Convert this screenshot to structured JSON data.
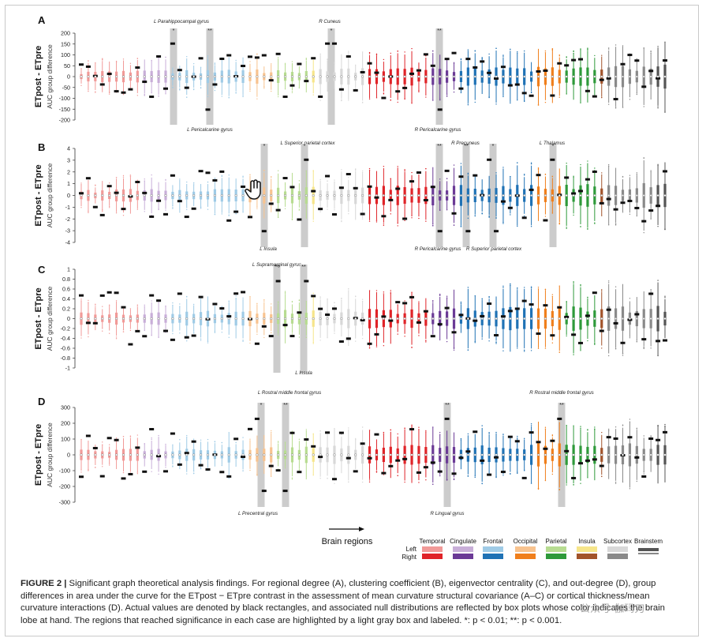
{
  "figure": {
    "caption_lead": "FIGURE 2 |",
    "caption_text": "Significant graph theoretical analysis findings. For regional degree (A), clustering coefficient (B), eigenvector centrality (C), and out-degree (D), group differences in area under the curve for the ETpost − ETpre contrast in the assessment of mean curvature structural covariance (A–C) or cortical thickness/mean curvature interactions (D). Actual values are denoted by black rectangles, and associated null distributions are reflected by box plots whose color indicates the brain lobe at hand. The regions that reached significance in each case are highlighted by a light gray box and labeled. *: p < 0.01; **: p < 0.001.",
    "watermark": "公众号·伽玛刀",
    "arrow_label": "Brain regions"
  },
  "legend": {
    "row_left": "Left",
    "row_right": "Right",
    "lobes": [
      {
        "name": "Temporal",
        "left": "#f19a98",
        "right": "#e02328"
      },
      {
        "name": "Cingulate",
        "left": "#c8aed8",
        "right": "#6b3a96"
      },
      {
        "name": "Frontal",
        "left": "#9fcbe6",
        "right": "#1f72b5"
      },
      {
        "name": "Occipital",
        "left": "#f8c38f",
        "right": "#f07f1c"
      },
      {
        "name": "Parietal",
        "left": "#b7dc91",
        "right": "#2e9a3a"
      },
      {
        "name": "Insula",
        "left": "#f6e58a",
        "right": "#a2532a"
      },
      {
        "name": "Subcortex",
        "left": "#d8d8d8",
        "right": "#8a8a8a"
      },
      {
        "name": "Brainstem",
        "left": "#555555",
        "right": "#555555"
      }
    ]
  },
  "chart_data": [
    {
      "panel": "A",
      "type": "box",
      "ylabel": "ETpost - ETpre",
      "ylabel2": "AUC group difference",
      "ylim": [
        -200,
        200
      ],
      "ticks": [
        200,
        150,
        100,
        50,
        0,
        -50,
        -100,
        -150,
        -200
      ],
      "significant": [
        {
          "label": "L Parahippocampal gyrus",
          "stars": "*",
          "label_pos": "top"
        },
        {
          "label": "L Pericalcarine gyrus",
          "stars": "**",
          "label_pos": "bottom"
        },
        {
          "label": "R Cuneus",
          "stars": "*",
          "label_pos": "top"
        },
        {
          "label": "R Pericalcarine gyrus",
          "stars": "**",
          "label_pos": "bottom"
        }
      ]
    },
    {
      "panel": "B",
      "type": "box",
      "ylabel": "ETpost - ETpre",
      "ylabel2": "AUC group difference",
      "ylim": [
        -4,
        4
      ],
      "ticks": [
        4,
        3,
        2,
        1,
        0,
        -1,
        -2,
        -3,
        -4
      ],
      "significant": [
        {
          "label": "L Superior parietal cortex",
          "stars": "*",
          "label_pos": "bottom"
        },
        {
          "label": "L Insula",
          "stars": "*",
          "label_pos": "top"
        },
        {
          "label": "R Pericalcarine gyrus",
          "stars": "**",
          "label_pos": "bottom"
        },
        {
          "label": "R Precuneus",
          "stars": "**",
          "label_pos": "top"
        },
        {
          "label": "R Superior parietal cortex",
          "stars": "*",
          "label_pos": "bottom"
        },
        {
          "label": "L Thalamus",
          "stars": "*",
          "label_pos": "top"
        }
      ]
    },
    {
      "panel": "C",
      "type": "box",
      "ylabel": "ETpost - ETpre",
      "ylabel2": "AUC group difference",
      "ylim": [
        -1,
        1
      ],
      "ticks": [
        1,
        0.8,
        0.6,
        0.4,
        0.2,
        0,
        -0.2,
        -0.4,
        -0.6,
        -0.8,
        -1
      ],
      "significant": [
        {
          "label": "L Supramarginal gyrus",
          "stars": "**",
          "label_pos": "top"
        },
        {
          "label": "L Insula",
          "stars": "**",
          "label_pos": "bottom"
        }
      ]
    },
    {
      "panel": "D",
      "type": "box",
      "ylabel": "ETpost - ETpre",
      "ylabel2": "AUC group difference",
      "ylim": [
        -300,
        300
      ],
      "ticks": [
        300,
        200,
        100,
        0,
        -100,
        -200,
        -300
      ],
      "significant": [
        {
          "label": "L Rostral middle frontal gyrus",
          "stars": "*",
          "label_pos": "top"
        },
        {
          "label": "L Precentral gyrus",
          "stars": "**",
          "label_pos": "bottom"
        },
        {
          "label": "R Lingual gyrus",
          "stars": "**",
          "label_pos": "bottom"
        },
        {
          "label": "R Rostral middle frontal gyrus",
          "stars": "**",
          "label_pos": "top"
        }
      ]
    }
  ]
}
